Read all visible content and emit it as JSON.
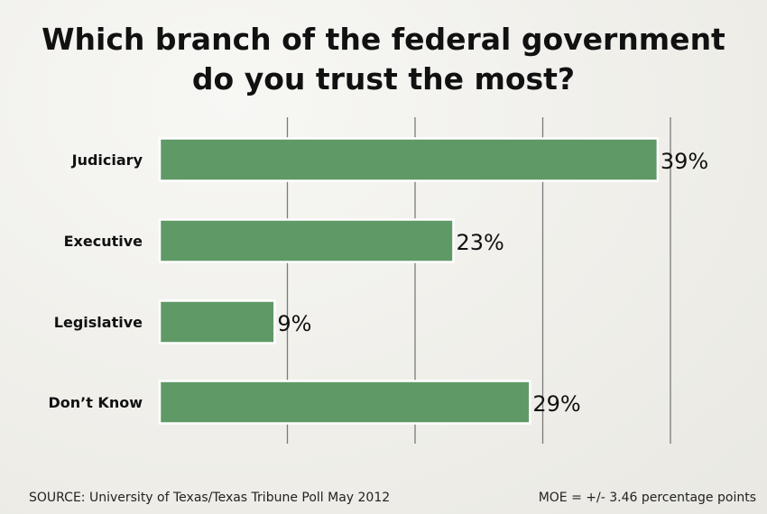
{
  "title_lines": [
    "Which branch of the federal government",
    "do you trust the most?"
  ],
  "footer": {
    "source": "SOURCE: University of Texas/Texas Tribune Poll May 2012",
    "moe": "MOE = +/- 3.46 percentage points"
  },
  "colors": {
    "bar": "#5f9a66",
    "bar_border": "#ffffff",
    "grid": "#7a7a7a",
    "text": "#111111"
  },
  "chart_data": {
    "type": "bar",
    "orientation": "horizontal",
    "categories": [
      "Judiciary",
      "Executive",
      "Legislative",
      "Don’t Know"
    ],
    "values": [
      39,
      23,
      9,
      29
    ],
    "value_labels": [
      "39%",
      "23%",
      "9%",
      "29%"
    ],
    "title": "Which branch of the federal government do you trust the most?",
    "xlabel": "",
    "ylabel": "",
    "xlim": [
      0,
      40
    ],
    "grid": true,
    "legend": "none"
  }
}
